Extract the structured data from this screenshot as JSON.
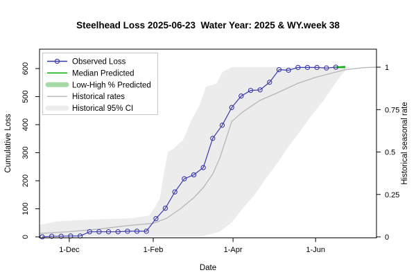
{
  "chart_data": {
    "type": "line",
    "title": "Steelhead Loss 2025-06-23  Water Year: 2025 & WY.week 38",
    "xlabel": "Date",
    "ylabel_left": "Cumulative Loss",
    "ylabel_right": "Historical seasonal rate",
    "x_axis": {
      "unit": "days_since_Nov_1",
      "domain": [
        8,
        257
      ],
      "ticks": [
        {
          "day": 30,
          "label": "1-Dec"
        },
        {
          "day": 92,
          "label": "1-Feb"
        },
        {
          "day": 151,
          "label": "1-Apr"
        },
        {
          "day": 212,
          "label": "1-Jun"
        }
      ]
    },
    "y_left": {
      "domain": [
        0,
        600
      ],
      "ticks": [
        0,
        100,
        200,
        300,
        400,
        500,
        600
      ]
    },
    "y_right": {
      "domain": [
        0,
        1
      ],
      "ticks": [
        "0",
        "0.25",
        "0.5",
        "0.75",
        "1"
      ]
    },
    "colors": {
      "observed": "#3838ab",
      "median_predicted": "#00a800",
      "low_high_predicted": "#a6d9a6",
      "historical_rates": "#b9b9b9",
      "historical_ci": "#ececec",
      "legend_border": "#c8c8c8"
    },
    "legend": [
      {
        "label": "Observed Loss",
        "swatch": "line-circle",
        "color": "#3838ab"
      },
      {
        "label": "Median Predicted",
        "swatch": "line",
        "color": "#00a800"
      },
      {
        "label": "Low-High % Predicted",
        "swatch": "band",
        "color": "#a6d9a6"
      },
      {
        "label": "Historical rates",
        "swatch": "line",
        "color": "#b9b9b9"
      },
      {
        "label": "Historical 95% CI",
        "swatch": "band",
        "color": "#ececec"
      }
    ],
    "series": {
      "observed_loss": {
        "axis": "left",
        "days": [
          10,
          17,
          24,
          31,
          38,
          45,
          52,
          59,
          66,
          73,
          80,
          87,
          94,
          101,
          108,
          115,
          122,
          129,
          136,
          143,
          150,
          157,
          164,
          171,
          178,
          185,
          192,
          199,
          206,
          213,
          220,
          227
        ],
        "values": [
          0,
          2,
          2,
          3,
          3,
          18,
          18,
          18,
          18,
          20,
          20,
          20,
          65,
          102,
          160,
          207,
          221,
          247,
          351,
          398,
          461,
          502,
          522,
          524,
          551,
          596,
          594,
          604,
          604,
          604,
          602,
          605
        ]
      },
      "median_predicted": {
        "axis": "left",
        "days": [
          227,
          234
        ],
        "values": [
          605,
          606
        ]
      },
      "low_high_predicted": {
        "axis": "left",
        "days": [
          227,
          234
        ],
        "low": [
          602,
          599
        ],
        "high": [
          607,
          610
        ]
      },
      "historical_rates": {
        "axis": "right",
        "days": [
          8,
          30,
          51,
          72,
          92,
          102,
          112,
          122,
          129,
          136,
          141,
          146,
          150,
          158,
          171,
          184,
          199,
          212,
          225,
          234,
          247,
          257
        ],
        "rates": [
          0.02,
          0.03,
          0.045,
          0.065,
          0.08,
          0.11,
          0.165,
          0.23,
          0.29,
          0.37,
          0.46,
          0.58,
          0.68,
          0.735,
          0.805,
          0.85,
          0.905,
          0.94,
          0.967,
          0.985,
          0.997,
          1.0
        ]
      },
      "historical_95_ci": {
        "axis": "right",
        "upper_days": [
          8,
          20,
          40,
          76,
          89,
          93,
          97,
          100,
          103,
          107,
          114,
          121,
          126,
          131,
          139,
          143,
          150,
          238
        ],
        "upper_rates": [
          0.07,
          0.09,
          0.1,
          0.11,
          0.125,
          0.17,
          0.23,
          0.38,
          0.5,
          0.52,
          0.57,
          0.7,
          0.77,
          0.885,
          0.905,
          0.97,
          1.0,
          1.0
        ],
        "lower_days": [
          8,
          127,
          141,
          150,
          158,
          167,
          175,
          184,
          192,
          201,
          209,
          218,
          226,
          231,
          234,
          238
        ],
        "lower_rates": [
          0,
          0,
          0.03,
          0.084,
          0.166,
          0.247,
          0.342,
          0.437,
          0.532,
          0.627,
          0.715,
          0.804,
          0.899,
          0.953,
          0.98,
          1.0
        ]
      }
    }
  }
}
